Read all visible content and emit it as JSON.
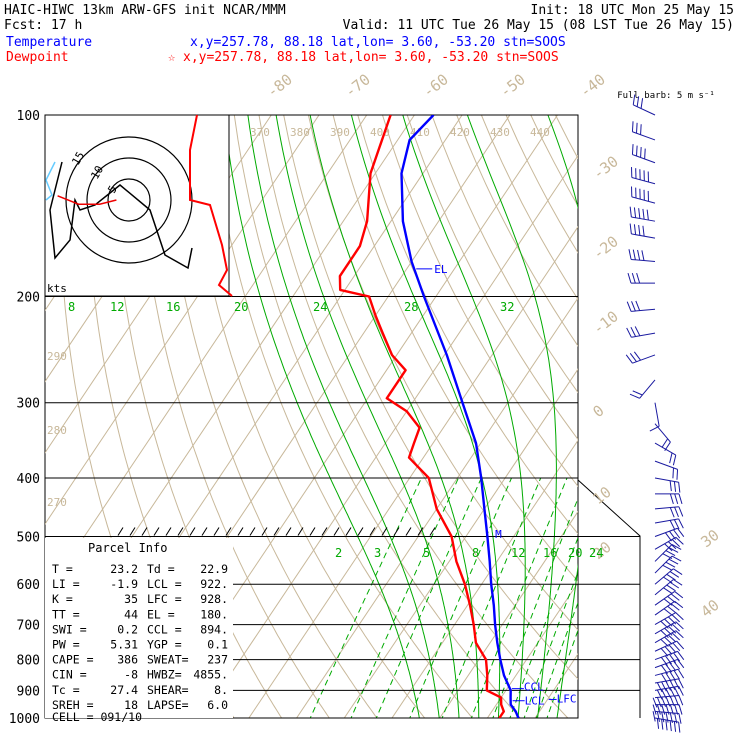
{
  "header": {
    "line1_left": "HAIC-HIWC 13km ARW-GFS init   NCAR/MMM",
    "line1_right": "Init: 18 UTC Mon 25 May 15",
    "line2_left": "Fcst:   17 h",
    "line2_right": "Valid: 11 UTC Tue 26 May 15 (08 LST Tue 26 May 15)",
    "temp_label": "Temperature",
    "temp_info": "x,y=257.78, 88.18   lat,lon=  3.60, -53.20  stn=SOOS",
    "dew_label": "Dewpoint",
    "dew_marker": "☆",
    "dew_info": "x,y=257.78, 88.18   lat,lon=  3.60, -53.20  stn=SOOS"
  },
  "colors": {
    "temperature": "#0000ff",
    "dewpoint": "#ff0000",
    "isotherm": "#c8b89a",
    "dry_adiabat": "#c8b89a",
    "moist_adiabat": "#00aa00",
    "mixing_ratio": "#00aa00",
    "isobar": "#000000",
    "wind": "#1a1aa0",
    "hodo_light": "#66ccff"
  },
  "chart_data": {
    "type": "line",
    "title": "Skew-T log-P sounding",
    "y_axis": {
      "ticks": [
        100,
        200,
        300,
        400,
        500,
        600,
        700,
        800,
        900,
        1000
      ],
      "scale": "log"
    },
    "isotherm_labels": [
      "-80",
      "-70",
      "-60",
      "-50",
      "-40",
      "-30",
      "-20",
      "-10",
      "0",
      "10",
      "20",
      "30",
      "40"
    ],
    "theta_labels_top": [
      "370",
      "380",
      "390",
      "400",
      "410",
      "420",
      "430",
      "440"
    ],
    "theta_labels_left": [
      "290",
      "280",
      "270"
    ],
    "mixing_ratio_labels_top": [
      "8",
      "12",
      "16",
      "20",
      "24",
      "28",
      "32"
    ],
    "mixing_ratio_labels_mid": [
      "2",
      "3",
      "5",
      "8",
      "12",
      "16",
      "20",
      "24"
    ],
    "series": [
      {
        "name": "Temperature",
        "points": [
          [
            1000,
            26.5
          ],
          [
            975,
            25.0
          ],
          [
            950,
            23.0
          ],
          [
            925,
            22.0
          ],
          [
            900,
            21.0
          ],
          [
            850,
            17.5
          ],
          [
            800,
            14.5
          ],
          [
            750,
            11.5
          ],
          [
            700,
            8.5
          ],
          [
            650,
            5.5
          ],
          [
            600,
            2.0
          ],
          [
            550,
            -1.5
          ],
          [
            500,
            -5.5
          ],
          [
            450,
            -10.0
          ],
          [
            400,
            -15.0
          ],
          [
            350,
            -21.0
          ],
          [
            300,
            -29.5
          ],
          [
            250,
            -39.5
          ],
          [
            200,
            -52.5
          ],
          [
            175,
            -60.0
          ],
          [
            150,
            -67.5
          ],
          [
            125,
            -74.5
          ],
          [
            110,
            -77.5
          ],
          [
            100,
            -76.0
          ]
        ]
      },
      {
        "name": "Dewpoint",
        "points": [
          [
            1000,
            22.5
          ],
          [
            975,
            22.5
          ],
          [
            950,
            21.0
          ],
          [
            925,
            20.0
          ],
          [
            900,
            16.0
          ],
          [
            850,
            14.0
          ],
          [
            800,
            11.5
          ],
          [
            750,
            7.0
          ],
          [
            700,
            4.0
          ],
          [
            650,
            0.5
          ],
          [
            600,
            -3.5
          ],
          [
            550,
            -8.5
          ],
          [
            500,
            -13.0
          ],
          [
            450,
            -20.0
          ],
          [
            400,
            -26.0
          ],
          [
            370,
            -33.0
          ],
          [
            350,
            -34.0
          ],
          [
            330,
            -35.0
          ],
          [
            310,
            -40.0
          ],
          [
            295,
            -46.0
          ],
          [
            265,
            -46.0
          ],
          [
            250,
            -51.0
          ],
          [
            230,
            -56.0
          ],
          [
            215,
            -60.0
          ],
          [
            200,
            -64.0
          ],
          [
            195,
            -71.0
          ],
          [
            185,
            -73.0
          ],
          [
            165,
            -73.0
          ],
          [
            150,
            -75.0
          ],
          [
            125,
            -81.0
          ],
          [
            100,
            -85.0
          ]
        ]
      }
    ],
    "level_markers": [
      {
        "label": "EL",
        "p": 180
      },
      {
        "label": "M",
        "p": 495
      },
      {
        "label": "CCL",
        "p": 894
      },
      {
        "label": "LCL",
        "p": 922
      },
      {
        "label": "LFC",
        "p": 928
      }
    ],
    "wind_scale": "Full barb: 5 m s⁻¹",
    "hodograph": {
      "label": "kts",
      "ring_labels": [
        "15",
        "10",
        "5"
      ],
      "points_main": [
        [
          -4,
          6
        ],
        [
          -3,
          3
        ],
        [
          -2,
          1
        ],
        [
          -1,
          0.5
        ],
        [
          0,
          0
        ],
        [
          1,
          0.5
        ],
        [
          2,
          -1
        ],
        [
          3,
          -3
        ],
        [
          5,
          -6
        ],
        [
          6,
          -7
        ],
        [
          7,
          -5
        ],
        [
          8,
          -7
        ]
      ],
      "points_low": [
        [
          -17,
          1
        ],
        [
          -12,
          -1
        ],
        [
          -7,
          -1
        ],
        [
          -3,
          0
        ]
      ],
      "points_light": [
        [
          -18,
          1
        ],
        [
          -19,
          3
        ],
        [
          -18,
          6
        ],
        [
          -17,
          4
        ]
      ]
    }
  },
  "parcel": {
    "title": "Parcel Info",
    "rows": [
      [
        "T  =",
        "23.2",
        "Td =",
        "22.9"
      ],
      [
        "LI =",
        "-1.9",
        "LCL =",
        "922."
      ],
      [
        "K  =",
        "35",
        "LFC =",
        "928."
      ],
      [
        "TT =",
        "44",
        "EL =",
        "180."
      ],
      [
        "SWI =",
        "0.2",
        "CCL =",
        "894."
      ],
      [
        "PW =",
        "5.31",
        "YGP =",
        "0.1"
      ],
      [
        "CAPE =",
        "386",
        "SWEAT=",
        "237"
      ],
      [
        "CIN =",
        "-8",
        "HWBZ=",
        "4855."
      ],
      [
        "Tc =",
        "27.4",
        "SHEAR=",
        "8."
      ],
      [
        "SREH =",
        "18",
        "LAPSE=",
        "6.0"
      ]
    ],
    "cell": "CELL = 091/10"
  },
  "winds": [
    {
      "p": 1000,
      "dir": 100,
      "spd": 6
    },
    {
      "p": 975,
      "dir": 95,
      "spd": 7
    },
    {
      "p": 950,
      "dir": 90,
      "spd": 7
    },
    {
      "p": 925,
      "dir": 85,
      "spd": 7
    },
    {
      "p": 900,
      "dir": 80,
      "spd": 6
    },
    {
      "p": 875,
      "dir": 80,
      "spd": 6
    },
    {
      "p": 850,
      "dir": 75,
      "spd": 5
    },
    {
      "p": 825,
      "dir": 70,
      "spd": 5
    },
    {
      "p": 800,
      "dir": 70,
      "spd": 5
    },
    {
      "p": 775,
      "dir": 65,
      "spd": 5
    },
    {
      "p": 750,
      "dir": 60,
      "spd": 5
    },
    {
      "p": 725,
      "dir": 60,
      "spd": 5
    },
    {
      "p": 700,
      "dir": 60,
      "spd": 5
    },
    {
      "p": 675,
      "dir": 55,
      "spd": 4
    },
    {
      "p": 650,
      "dir": 55,
      "spd": 4
    },
    {
      "p": 625,
      "dir": 50,
      "spd": 4
    },
    {
      "p": 600,
      "dir": 50,
      "spd": 4
    },
    {
      "p": 575,
      "dir": 45,
      "spd": 4
    },
    {
      "p": 550,
      "dir": 45,
      "spd": 4
    },
    {
      "p": 525,
      "dir": 60,
      "spd": 4
    },
    {
      "p": 500,
      "dir": 70,
      "spd": 4
    },
    {
      "p": 475,
      "dir": 80,
      "spd": 3
    },
    {
      "p": 450,
      "dir": 85,
      "spd": 3
    },
    {
      "p": 425,
      "dir": 90,
      "spd": 3
    },
    {
      "p": 400,
      "dir": 100,
      "spd": 3
    },
    {
      "p": 375,
      "dir": 110,
      "spd": 2
    },
    {
      "p": 350,
      "dir": 120,
      "spd": 2
    },
    {
      "p": 325,
      "dir": 140,
      "spd": 2
    },
    {
      "p": 300,
      "dir": 170,
      "spd": 1
    },
    {
      "p": 275,
      "dir": 220,
      "spd": 2
    },
    {
      "p": 250,
      "dir": 250,
      "spd": 3
    },
    {
      "p": 230,
      "dir": 260,
      "spd": 3
    },
    {
      "p": 210,
      "dir": 265,
      "spd": 3
    },
    {
      "p": 190,
      "dir": 270,
      "spd": 3
    },
    {
      "p": 175,
      "dir": 275,
      "spd": 4
    },
    {
      "p": 160,
      "dir": 280,
      "spd": 4
    },
    {
      "p": 150,
      "dir": 280,
      "spd": 5
    },
    {
      "p": 140,
      "dir": 285,
      "spd": 5
    },
    {
      "p": 130,
      "dir": 285,
      "spd": 5
    },
    {
      "p": 120,
      "dir": 290,
      "spd": 4
    },
    {
      "p": 110,
      "dir": 290,
      "spd": 3
    },
    {
      "p": 100,
      "dir": 295,
      "spd": 3
    }
  ]
}
